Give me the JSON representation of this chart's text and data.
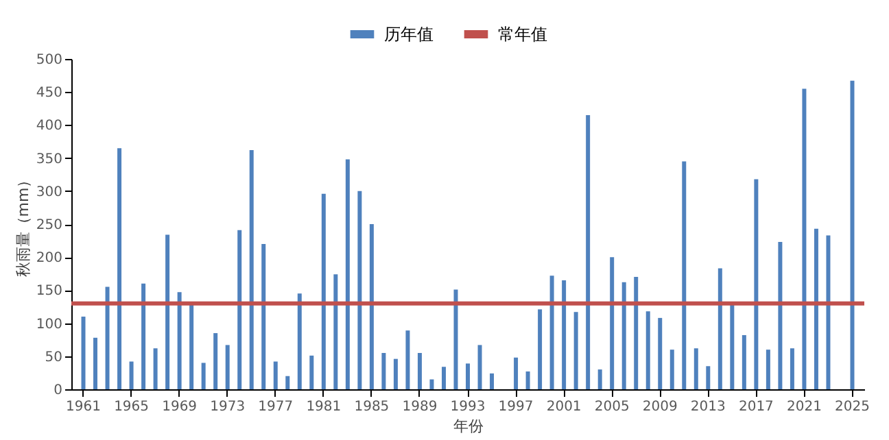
{
  "chart_data": {
    "type": "bar",
    "xlabel": "年份",
    "ylabel": "秋雨量（mm）",
    "categories": [
      "1961",
      null,
      null,
      null,
      "1965",
      null,
      null,
      null,
      "1969",
      null,
      null,
      null,
      "1973",
      null,
      null,
      null,
      "1977",
      null,
      null,
      null,
      "1981",
      null,
      null,
      null,
      "1985",
      null,
      null,
      null,
      "1989",
      null,
      null,
      null,
      "1993",
      null,
      null,
      null,
      "1997",
      null,
      null,
      null,
      "2001",
      null,
      null,
      null,
      "2005",
      null,
      null,
      null,
      "2009",
      null,
      null,
      null,
      "2013",
      null,
      null,
      null,
      "2017",
      null,
      null,
      null,
      "2021",
      null,
      null,
      null,
      "2025"
    ],
    "series": [
      {
        "name": "历年值",
        "color": "#4f81bd",
        "values": [
          110,
          78,
          155,
          365,
          42,
          160,
          62,
          234,
          147,
          128,
          40,
          85,
          67,
          241,
          362,
          220,
          42,
          20,
          145,
          51,
          296,
          174,
          348,
          300,
          250,
          55,
          46,
          89,
          55,
          15,
          34,
          151,
          39,
          67,
          24,
          null,
          48,
          27,
          121,
          172,
          165,
          117,
          415,
          30,
          200,
          162,
          170,
          118,
          108,
          60,
          345,
          62,
          35,
          183,
          130,
          82,
          318,
          60,
          223,
          62,
          455,
          243,
          233,
          null,
          467
        ]
      }
    ],
    "ref_lines": [
      {
        "axis": "y",
        "value": 130,
        "label": "常年值",
        "color": "#c0504d"
      }
    ],
    "ylim": [
      0,
      500
    ],
    "yticks": [
      0,
      50,
      100,
      150,
      200,
      250,
      300,
      350,
      400,
      450,
      500
    ],
    "legend": "top",
    "grid": false
  }
}
